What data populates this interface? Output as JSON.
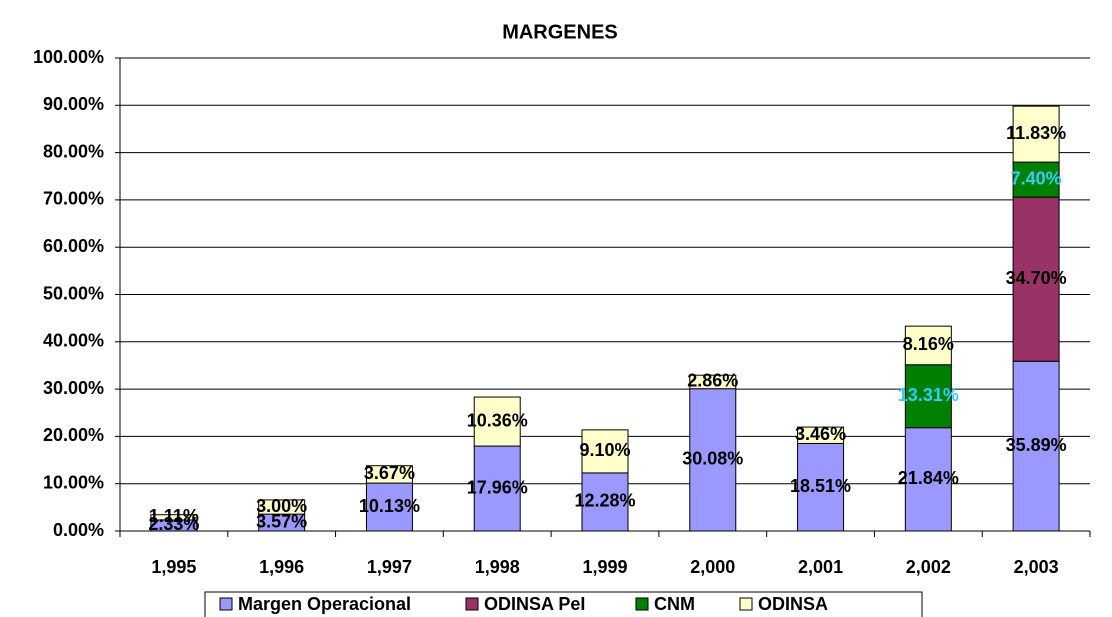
{
  "chart_data": {
    "type": "stacked_bar",
    "title": "MARGENES",
    "categories": [
      "1,995",
      "1,996",
      "1,997",
      "1,998",
      "1,999",
      "2,000",
      "2,001",
      "2,002",
      "2,003"
    ],
    "series": [
      {
        "name": "Margen Operacional",
        "color": "#9999ff",
        "label_color": "#000000",
        "values": [
          2.33,
          3.57,
          10.13,
          17.96,
          12.28,
          30.08,
          18.51,
          21.84,
          35.89
        ],
        "value_labels": [
          "2.33%",
          "3.57%",
          "10.13%",
          "17.96%",
          "12.28%",
          "30.08%",
          "18.51%",
          "21.84%",
          "35.89%"
        ]
      },
      {
        "name": "ODINSA PeI",
        "color": "#993366",
        "label_color": "#000000",
        "values": [
          null,
          null,
          null,
          null,
          null,
          null,
          null,
          null,
          34.7
        ],
        "value_labels": [
          null,
          null,
          null,
          null,
          null,
          null,
          null,
          null,
          "34.70%"
        ]
      },
      {
        "name": "CNM",
        "color": "#008000",
        "label_color": "#33ccff",
        "values": [
          null,
          null,
          null,
          null,
          null,
          null,
          null,
          13.31,
          7.4
        ],
        "value_labels": [
          null,
          null,
          null,
          null,
          null,
          null,
          null,
          "13.31%",
          "7.40%"
        ]
      },
      {
        "name": "ODINSA",
        "color": "#ffffcc",
        "label_color": "#000000",
        "values": [
          1.11,
          3.0,
          3.67,
          10.36,
          9.1,
          2.86,
          3.46,
          8.16,
          11.83
        ],
        "value_labels": [
          "1.11%",
          "3.00%",
          "3.67%",
          "10.36%",
          "9.10%",
          "2.86%",
          "3.46%",
          "8.16%",
          "11.83%"
        ]
      }
    ],
    "ylim": [
      0,
      100
    ],
    "yticks": [
      {
        "value": 0,
        "label": "0.00%"
      },
      {
        "value": 10,
        "label": "10.00%"
      },
      {
        "value": 20,
        "label": "20.00%"
      },
      {
        "value": 30,
        "label": "30.00%"
      },
      {
        "value": 40,
        "label": "40.00%"
      },
      {
        "value": 50,
        "label": "50.00%"
      },
      {
        "value": 60,
        "label": "60.00%"
      },
      {
        "value": 70,
        "label": "70.00%"
      },
      {
        "value": 80,
        "label": "80.00%"
      },
      {
        "value": 90,
        "label": "90.00%"
      },
      {
        "value": 100,
        "label": "100.00%"
      }
    ],
    "grid": true,
    "legend": "bottom"
  }
}
